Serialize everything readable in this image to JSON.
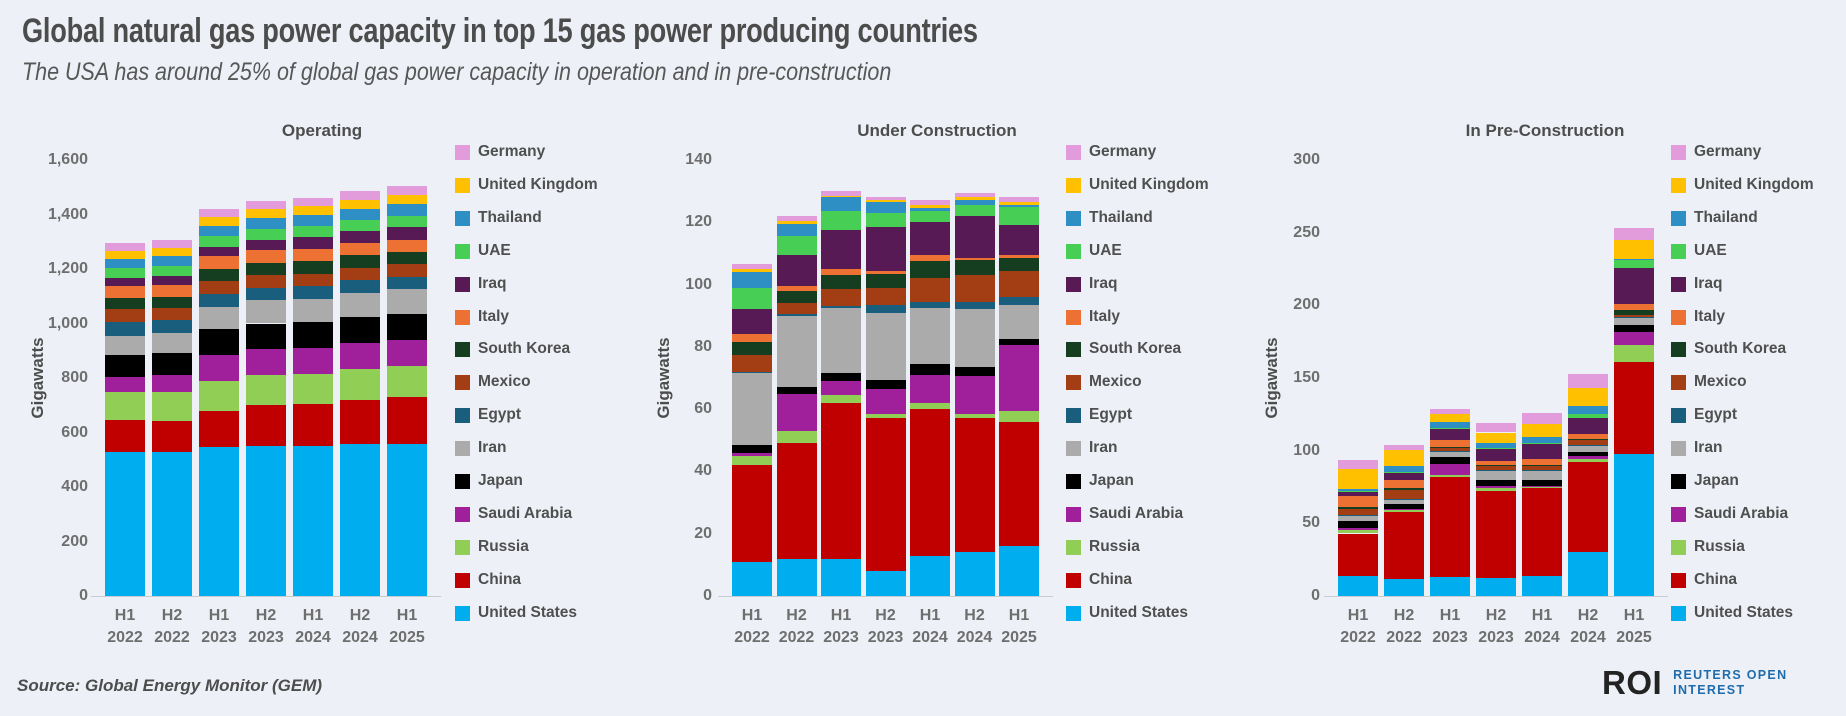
{
  "page": {
    "title": "Global natural gas power capacity in top 15 gas power producing countries",
    "subtitle": "The USA has around 25% of global gas power capacity in operation and in pre-construction",
    "source": "Source: Global Energy Monitor (GEM)",
    "logo": {
      "roi": "ROI",
      "line1": "REUTERS OPEN",
      "line2": "INTEREST"
    }
  },
  "colors": {
    "background": "#EDF1F7",
    "axis_line": "#c7ccd4",
    "title_text": "#4c4c4c",
    "tick_text": "#6e6e6e",
    "logo_blue": "#1F6CAD",
    "logo_dark": "#232323"
  },
  "countries": [
    {
      "name": "Germany",
      "color": "#E29BDB"
    },
    {
      "name": "United Kingdom",
      "color": "#FFC000"
    },
    {
      "name": "Thailand",
      "color": "#2E8FC5"
    },
    {
      "name": "UAE",
      "color": "#47CE55"
    },
    {
      "name": "Iraq",
      "color": "#571A54"
    },
    {
      "name": "Italy",
      "color": "#EC7133"
    },
    {
      "name": "South Korea",
      "color": "#153E20"
    },
    {
      "name": "Mexico",
      "color": "#A33E14"
    },
    {
      "name": "Egypt",
      "color": "#1A5E7E"
    },
    {
      "name": "Iran",
      "color": "#ABABAB"
    },
    {
      "name": "Japan",
      "color": "#000000"
    },
    {
      "name": "Saudi Arabia",
      "color": "#A0209B"
    },
    {
      "name": "Russia",
      "color": "#90CE56"
    },
    {
      "name": "China",
      "color": "#C00000"
    },
    {
      "name": "United States",
      "color": "#00ADEE"
    }
  ],
  "chart_data": [
    {
      "type": "bar",
      "stacked": true,
      "title": "Operating",
      "ylabel": "Gigawatts",
      "xlabel": "",
      "ylim": [
        0,
        1600
      ],
      "yticks": [
        "0",
        "200",
        "400",
        "600",
        "800",
        "1,000",
        "1,200",
        "1,400",
        "1,600"
      ],
      "categories": [
        "H1 2022",
        "H2 2022",
        "H1 2023",
        "H2 2023",
        "H1 2024",
        "H2 2024",
        "H1 2025"
      ],
      "grid": false,
      "legend_position": "right",
      "stack_order": "bottom-to-top",
      "series": [
        {
          "name": "United States",
          "values": [
            527,
            528,
            545,
            552,
            552,
            556,
            556
          ]
        },
        {
          "name": "China",
          "values": [
            120,
            115,
            135,
            148,
            152,
            165,
            175
          ]
        },
        {
          "name": "Russia",
          "values": [
            100,
            105,
            110,
            110,
            111,
            112,
            112
          ]
        },
        {
          "name": "Saudi Arabia",
          "values": [
            58,
            62,
            95,
            95,
            96,
            97,
            98
          ]
        },
        {
          "name": "Japan",
          "values": [
            78,
            82,
            95,
            95,
            94,
            94,
            94
          ]
        },
        {
          "name": "Iran",
          "values": [
            72,
            72,
            80,
            85,
            86,
            89,
            90
          ]
        },
        {
          "name": "Egypt",
          "values": [
            52,
            48,
            50,
            46,
            46,
            46,
            46
          ]
        },
        {
          "name": "Mexico",
          "values": [
            46,
            45,
            46,
            46,
            46,
            46,
            46
          ]
        },
        {
          "name": "South Korea",
          "values": [
            40,
            42,
            44,
            45,
            45,
            45,
            45
          ]
        },
        {
          "name": "Italy",
          "values": [
            45,
            44,
            46,
            46,
            46,
            46,
            45
          ]
        },
        {
          "name": "Iraq",
          "values": [
            28,
            30,
            34,
            38,
            42,
            43,
            46
          ]
        },
        {
          "name": "UAE",
          "values": [
            36,
            38,
            40,
            41,
            42,
            42,
            43
          ]
        },
        {
          "name": "Thailand",
          "values": [
            35,
            36,
            38,
            39,
            39,
            39,
            41
          ]
        },
        {
          "name": "United Kingdom",
          "values": [
            29,
            31,
            32,
            33,
            33,
            33,
            34
          ]
        },
        {
          "name": "Germany",
          "values": [
            28,
            29,
            30,
            31,
            32,
            32,
            33
          ]
        }
      ]
    },
    {
      "type": "bar",
      "stacked": true,
      "title": "Under Construction",
      "ylabel": "Gigawatts",
      "xlabel": "",
      "ylim": [
        0,
        140
      ],
      "yticks": [
        "0",
        "20",
        "40",
        "60",
        "80",
        "100",
        "120",
        "140"
      ],
      "categories": [
        "H1 2022",
        "H2 2022",
        "H1 2023",
        "H2 2023",
        "H1 2024",
        "H2 2024",
        "H1 2025"
      ],
      "grid": false,
      "legend_position": "right",
      "stack_order": "bottom-to-top",
      "series": [
        {
          "name": "United States",
          "values": [
            11,
            12,
            12,
            8,
            13,
            14,
            16
          ]
        },
        {
          "name": "China",
          "values": [
            31,
            37,
            50,
            49,
            47,
            43,
            40
          ]
        },
        {
          "name": "Russia",
          "values": [
            3,
            4,
            2.5,
            1.5,
            2,
            1.5,
            3.5
          ]
        },
        {
          "name": "Saudi Arabia",
          "values": [
            1,
            12,
            4.5,
            8,
            9,
            12,
            21
          ]
        },
        {
          "name": "Japan",
          "values": [
            2.5,
            2,
            2.5,
            3,
            3.5,
            3,
            2
          ]
        },
        {
          "name": "Iran",
          "values": [
            23,
            23,
            21,
            21.5,
            18,
            18.5,
            11
          ]
        },
        {
          "name": "Egypt",
          "values": [
            0.5,
            0.5,
            0.5,
            2.5,
            2,
            2.5,
            2.5
          ]
        },
        {
          "name": "Mexico",
          "values": [
            5.5,
            3.5,
            5.5,
            5.5,
            7.5,
            8.5,
            8.5
          ]
        },
        {
          "name": "South Korea",
          "values": [
            4,
            4,
            4.5,
            4.5,
            5.5,
            5,
            4
          ]
        },
        {
          "name": "Italy",
          "values": [
            2.5,
            1.5,
            2,
            1,
            2,
            0.5,
            1
          ]
        },
        {
          "name": "Iraq",
          "values": [
            8,
            10,
            12.5,
            14,
            10.5,
            13.5,
            9.5
          ]
        },
        {
          "name": "UAE",
          "values": [
            7,
            6,
            6,
            4.5,
            3.5,
            3.5,
            6
          ]
        },
        {
          "name": "Thailand",
          "values": [
            5,
            4,
            4.5,
            3.5,
            1,
            1.5,
            0.5
          ]
        },
        {
          "name": "United Kingdom",
          "values": [
            1,
            1,
            0.5,
            0.5,
            1,
            1,
            1
          ]
        },
        {
          "name": "Germany",
          "values": [
            1.5,
            1.5,
            1.5,
            1,
            1.5,
            1.5,
            1.5
          ]
        }
      ]
    },
    {
      "type": "bar",
      "stacked": true,
      "title": "In Pre-Construction",
      "ylabel": "Gigawatts",
      "xlabel": "",
      "ylim": [
        0,
        300
      ],
      "yticks": [
        "0",
        "50",
        "100",
        "150",
        "200",
        "250",
        "300"
      ],
      "categories": [
        "H1 2022",
        "H2 2022",
        "H1 2023",
        "H2 2023",
        "H1 2024",
        "H2 2024",
        "H1 2025"
      ],
      "grid": false,
      "legend_position": "right",
      "stack_order": "bottom-to-top",
      "series": [
        {
          "name": "United States",
          "values": [
            14,
            12,
            13,
            12.5,
            14,
            30,
            98
          ]
        },
        {
          "name": "China",
          "values": [
            29,
            46,
            69,
            60,
            60,
            62,
            63
          ]
        },
        {
          "name": "Russia",
          "values": [
            2.5,
            1.5,
            1,
            1.5,
            1,
            2,
            12
          ]
        },
        {
          "name": "Saudi Arabia",
          "values": [
            1,
            0.5,
            7.5,
            2,
            1,
            2,
            8.5
          ]
        },
        {
          "name": "Japan",
          "values": [
            5,
            3,
            5,
            3.5,
            4,
            3,
            5
          ]
        },
        {
          "name": "Iran",
          "values": [
            3.5,
            3,
            4,
            6.5,
            6.5,
            4,
            4.5
          ]
        },
        {
          "name": "Egypt",
          "values": [
            1,
            0.5,
            0.5,
            0.5,
            0.5,
            1,
            1
          ]
        },
        {
          "name": "Mexico",
          "values": [
            4,
            6.5,
            2,
            3,
            2.5,
            3.5,
            1.5
          ]
        },
        {
          "name": "South Korea",
          "values": [
            1,
            1.5,
            0.5,
            0.5,
            0.5,
            0.5,
            3.5
          ]
        },
        {
          "name": "Italy",
          "values": [
            8,
            5,
            4.5,
            3,
            4.5,
            3.5,
            4
          ]
        },
        {
          "name": "Iraq",
          "values": [
            2.5,
            5,
            8,
            8,
            10,
            11,
            25
          ]
        },
        {
          "name": "UAE",
          "values": [
            0.5,
            0.5,
            0.5,
            0.5,
            0.5,
            3,
            5.5
          ]
        },
        {
          "name": "Thailand",
          "values": [
            1.5,
            4.5,
            4.5,
            4,
            4.5,
            5.5,
            0.5
          ]
        },
        {
          "name": "United Kingdom",
          "values": [
            14,
            11,
            5.5,
            7,
            9,
            12,
            13
          ]
        },
        {
          "name": "Germany",
          "values": [
            6,
            3.5,
            3.5,
            6.5,
            7.5,
            9.5,
            8
          ]
        }
      ]
    }
  ]
}
